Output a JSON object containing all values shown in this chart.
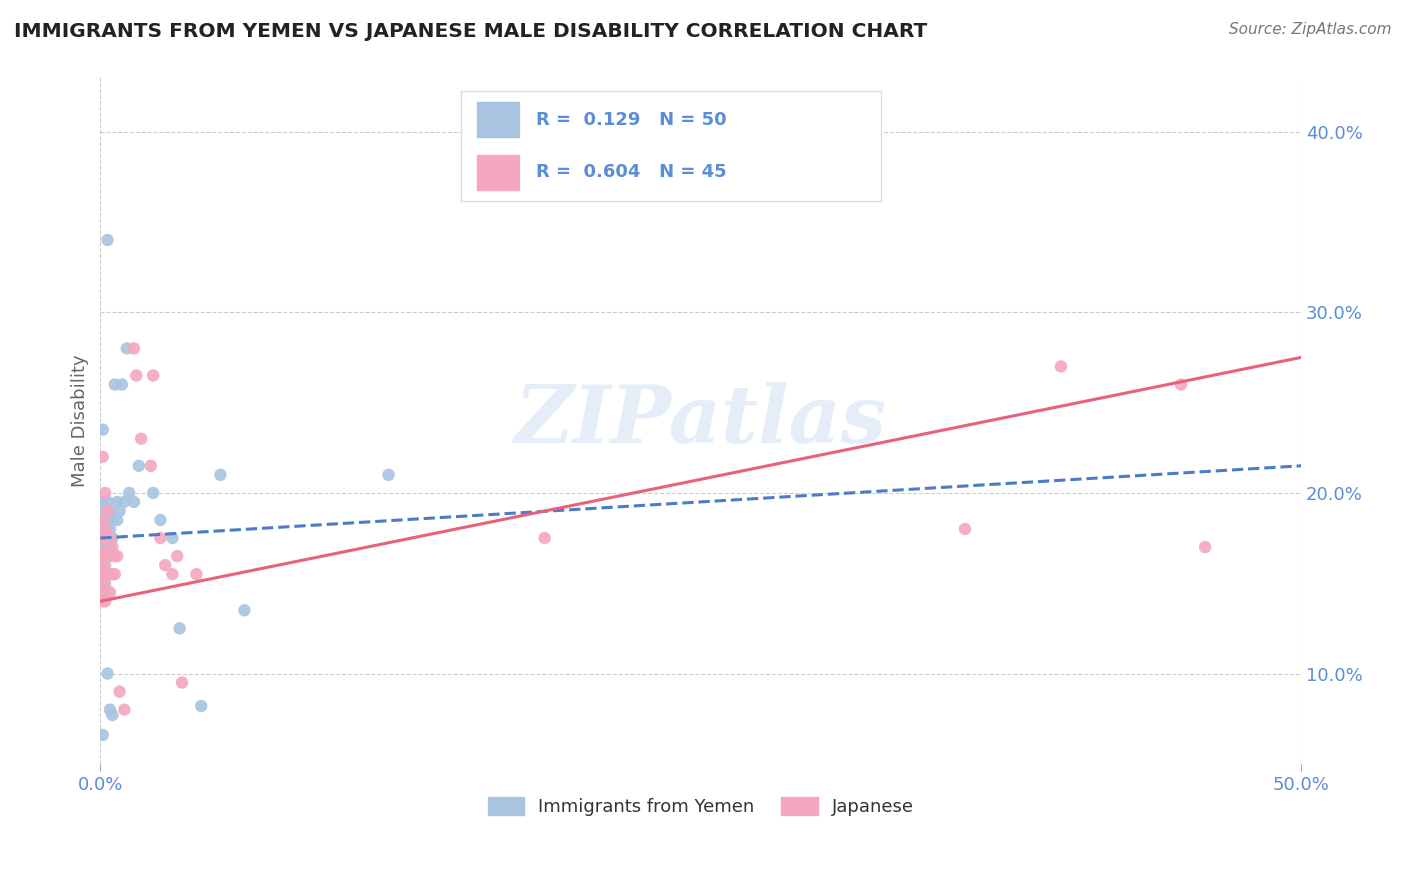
{
  "title": "IMMIGRANTS FROM YEMEN VS JAPANESE MALE DISABILITY CORRELATION CHART",
  "source": "Source: ZipAtlas.com",
  "ylabel": "Male Disability",
  "xlim": [
    0.0,
    0.5
  ],
  "ylim": [
    0.05,
    0.43
  ],
  "ytick_labels": [
    "10.0%",
    "20.0%",
    "30.0%",
    "40.0%"
  ],
  "ytick_values": [
    0.1,
    0.2,
    0.3,
    0.4
  ],
  "xtick_labels": [
    "0.0%",
    "50.0%"
  ],
  "xtick_values": [
    0.0,
    0.5
  ],
  "blue_color": "#a8c4e0",
  "pink_color": "#f4a7bf",
  "blue_line_color": "#4d7cc7",
  "pink_line_color": "#e8607a",
  "watermark": "ZIPatlas",
  "title_color": "#222222",
  "axis_label_color": "#5b8dd9",
  "tick_color": "#5b8dd9",
  "scatter_blue": [
    [
      0.001,
      0.195
    ],
    [
      0.001,
      0.185
    ],
    [
      0.001,
      0.175
    ],
    [
      0.001,
      0.17
    ],
    [
      0.001,
      0.165
    ],
    [
      0.001,
      0.16
    ],
    [
      0.001,
      0.155
    ],
    [
      0.001,
      0.15
    ],
    [
      0.001,
      0.145
    ],
    [
      0.002,
      0.19
    ],
    [
      0.002,
      0.18
    ],
    [
      0.002,
      0.175
    ],
    [
      0.002,
      0.17
    ],
    [
      0.002,
      0.165
    ],
    [
      0.002,
      0.16
    ],
    [
      0.002,
      0.155
    ],
    [
      0.002,
      0.15
    ],
    [
      0.003,
      0.195
    ],
    [
      0.003,
      0.185
    ],
    [
      0.003,
      0.175
    ],
    [
      0.003,
      0.165
    ],
    [
      0.004,
      0.19
    ],
    [
      0.004,
      0.18
    ],
    [
      0.004,
      0.17
    ],
    [
      0.005,
      0.185
    ],
    [
      0.005,
      0.175
    ],
    [
      0.006,
      0.26
    ],
    [
      0.007,
      0.195
    ],
    [
      0.007,
      0.185
    ],
    [
      0.008,
      0.19
    ],
    [
      0.009,
      0.26
    ],
    [
      0.01,
      0.195
    ],
    [
      0.012,
      0.2
    ],
    [
      0.014,
      0.195
    ],
    [
      0.016,
      0.215
    ],
    [
      0.001,
      0.235
    ],
    [
      0.003,
      0.34
    ],
    [
      0.011,
      0.28
    ],
    [
      0.022,
      0.2
    ],
    [
      0.025,
      0.185
    ],
    [
      0.03,
      0.175
    ],
    [
      0.033,
      0.125
    ],
    [
      0.042,
      0.082
    ],
    [
      0.05,
      0.21
    ],
    [
      0.06,
      0.135
    ],
    [
      0.12,
      0.21
    ],
    [
      0.001,
      0.066
    ],
    [
      0.003,
      0.1
    ],
    [
      0.004,
      0.08
    ],
    [
      0.005,
      0.077
    ]
  ],
  "scatter_pink": [
    [
      0.001,
      0.22
    ],
    [
      0.001,
      0.185
    ],
    [
      0.001,
      0.175
    ],
    [
      0.001,
      0.165
    ],
    [
      0.001,
      0.16
    ],
    [
      0.001,
      0.15
    ],
    [
      0.001,
      0.145
    ],
    [
      0.001,
      0.14
    ],
    [
      0.002,
      0.2
    ],
    [
      0.002,
      0.18
    ],
    [
      0.002,
      0.168
    ],
    [
      0.002,
      0.155
    ],
    [
      0.002,
      0.145
    ],
    [
      0.002,
      0.14
    ],
    [
      0.003,
      0.19
    ],
    [
      0.003,
      0.175
    ],
    [
      0.003,
      0.165
    ],
    [
      0.003,
      0.155
    ],
    [
      0.004,
      0.175
    ],
    [
      0.004,
      0.165
    ],
    [
      0.004,
      0.155
    ],
    [
      0.004,
      0.145
    ],
    [
      0.005,
      0.17
    ],
    [
      0.005,
      0.155
    ],
    [
      0.006,
      0.165
    ],
    [
      0.006,
      0.155
    ],
    [
      0.007,
      0.165
    ],
    [
      0.008,
      0.09
    ],
    [
      0.01,
      0.08
    ],
    [
      0.014,
      0.28
    ],
    [
      0.015,
      0.265
    ],
    [
      0.017,
      0.23
    ],
    [
      0.021,
      0.215
    ],
    [
      0.022,
      0.265
    ],
    [
      0.025,
      0.175
    ],
    [
      0.027,
      0.16
    ],
    [
      0.03,
      0.155
    ],
    [
      0.032,
      0.165
    ],
    [
      0.034,
      0.095
    ],
    [
      0.04,
      0.155
    ],
    [
      0.185,
      0.175
    ],
    [
      0.36,
      0.18
    ],
    [
      0.4,
      0.27
    ],
    [
      0.45,
      0.26
    ],
    [
      0.46,
      0.17
    ]
  ],
  "blue_trend_x": [
    0.0,
    0.5
  ],
  "blue_trend_y": [
    0.175,
    0.215
  ],
  "pink_trend_x": [
    0.0,
    0.5
  ],
  "pink_trend_y": [
    0.14,
    0.275
  ],
  "legend1_r": "0.129",
  "legend1_n": "50",
  "legend2_r": "0.604",
  "legend2_n": "45",
  "legend_bottom_label1": "Immigrants from Yemen",
  "legend_bottom_label2": "Japanese"
}
